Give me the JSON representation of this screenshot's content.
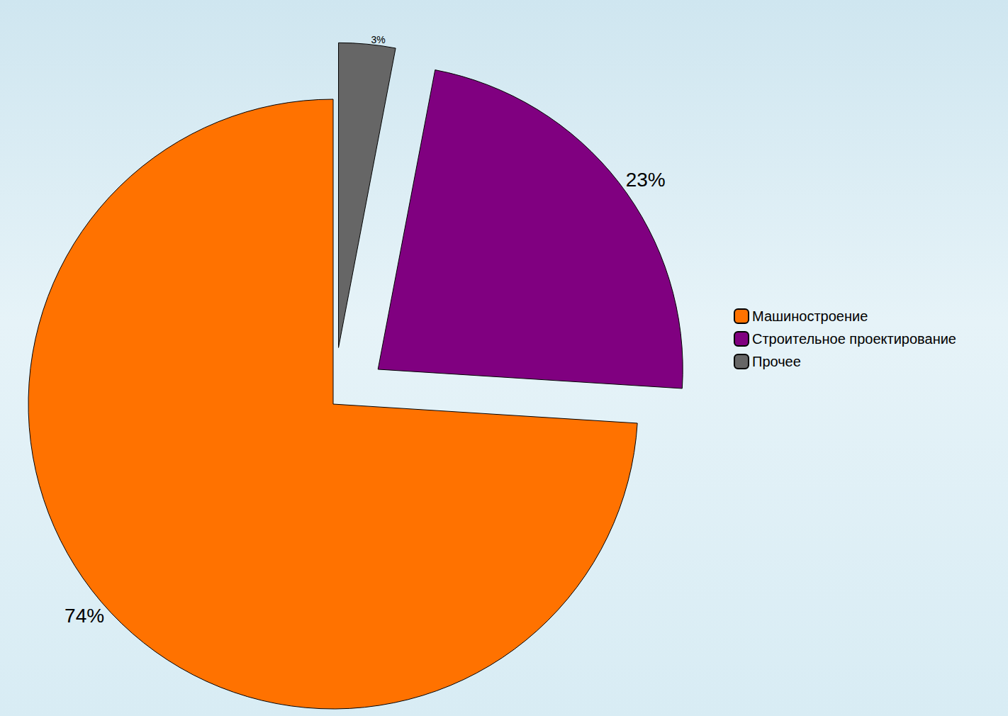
{
  "chart_data": {
    "type": "pie",
    "categories": [
      "Машиностроение",
      "Строительное проектирование",
      "Прочее"
    ],
    "values": [
      74,
      23,
      3
    ],
    "value_labels": [
      "74%",
      "23%",
      "3%"
    ],
    "colors": [
      "#ff7200",
      "#800080",
      "#666666"
    ],
    "data_labels": true,
    "legend": "right"
  }
}
